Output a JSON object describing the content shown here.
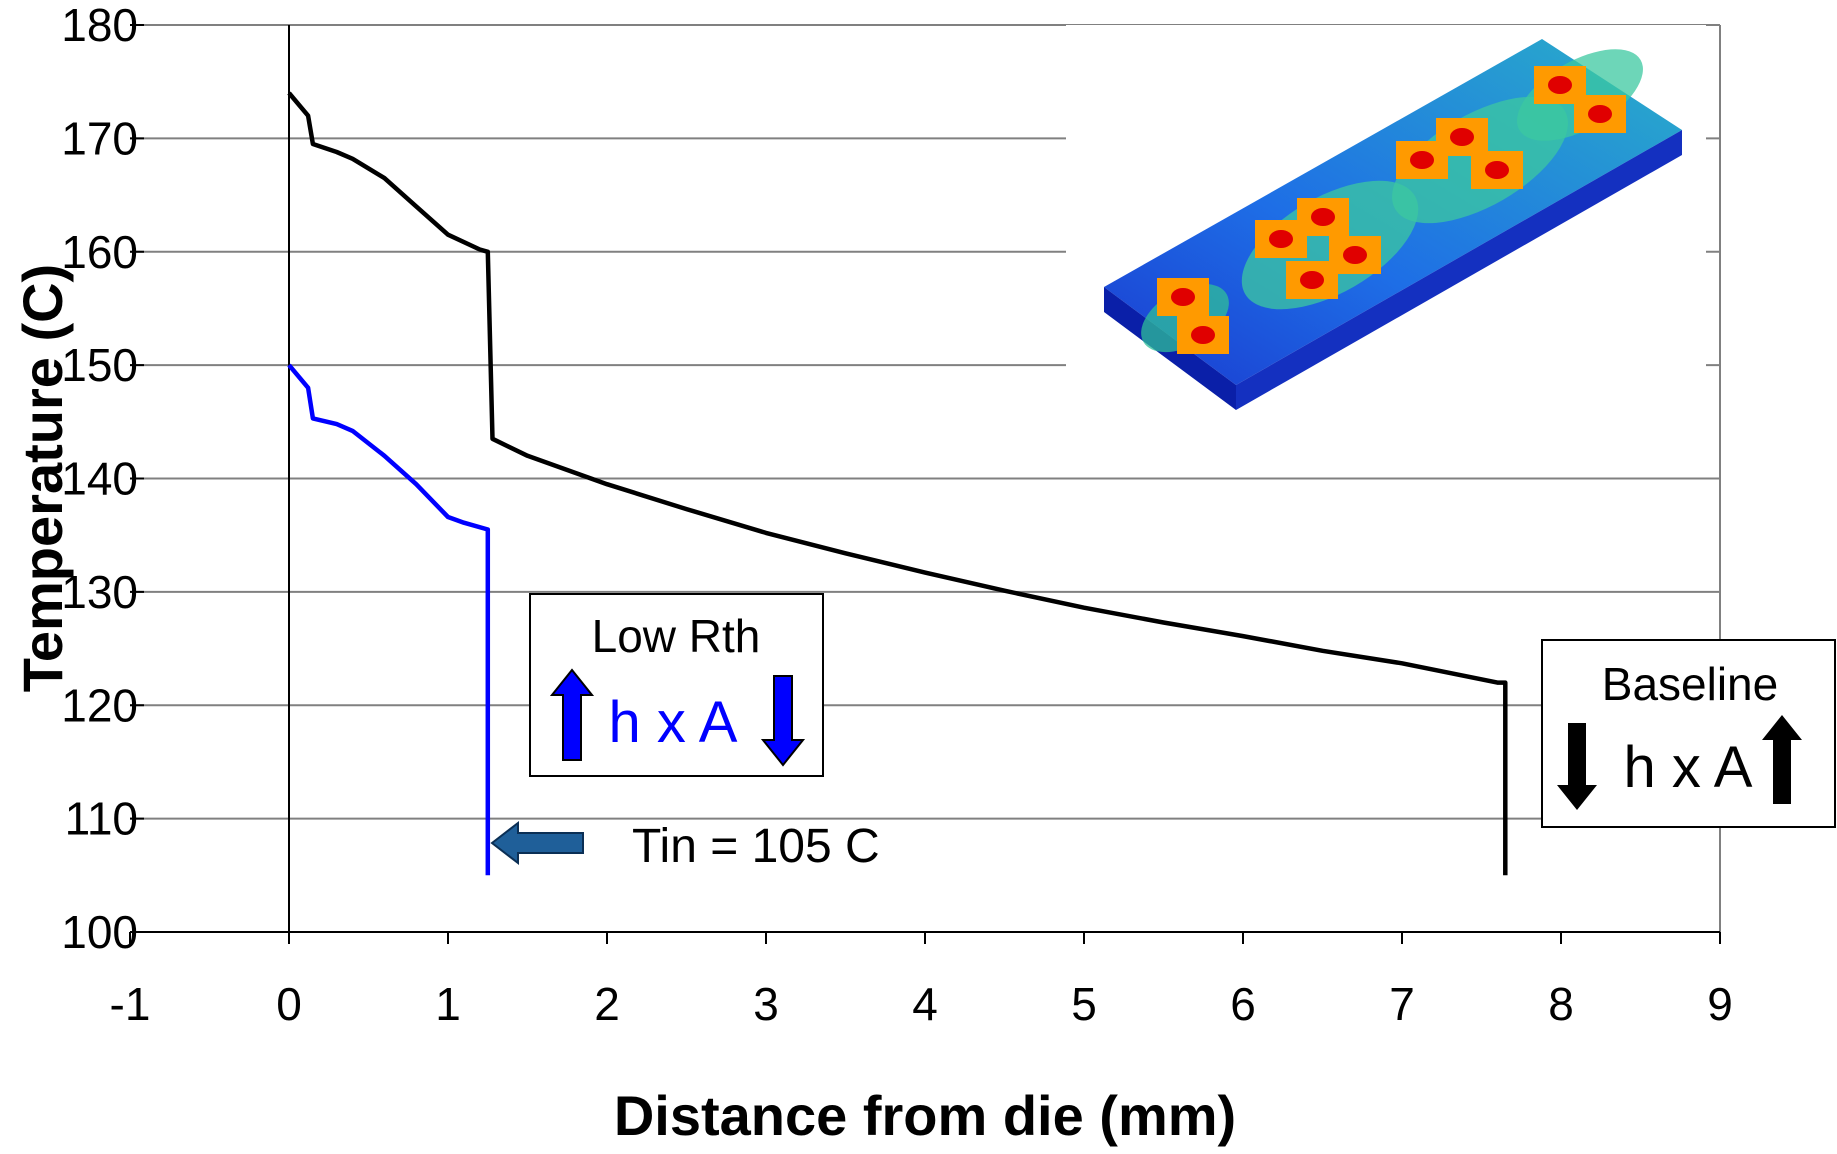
{
  "chart_data": {
    "type": "line",
    "xlabel": "Distance from die (mm)",
    "ylabel": "Temperature (C)",
    "xlim": [
      -1,
      9
    ],
    "ylim": [
      100,
      180
    ],
    "x_ticks": [
      "-1",
      "0",
      "1",
      "2",
      "3",
      "4",
      "5",
      "6",
      "7",
      "8",
      "9"
    ],
    "y_ticks": [
      "100",
      "110",
      "120",
      "130",
      "140",
      "150",
      "160",
      "170",
      "180"
    ],
    "grid": "horizontal",
    "series": [
      {
        "color": "#000000",
        "points": [
          [
            0.0,
            174.0
          ],
          [
            0.12,
            172.0
          ],
          [
            0.15,
            169.5
          ],
          [
            0.3,
            168.8
          ],
          [
            0.4,
            168.2
          ],
          [
            0.6,
            166.5
          ],
          [
            0.8,
            164.0
          ],
          [
            1.0,
            161.5
          ],
          [
            1.2,
            160.2
          ],
          [
            1.25,
            160.0
          ],
          [
            1.28,
            143.5
          ],
          [
            1.5,
            142.0
          ],
          [
            2.0,
            139.5
          ],
          [
            2.5,
            137.3
          ],
          [
            3.0,
            135.2
          ],
          [
            3.5,
            133.4
          ],
          [
            4.0,
            131.7
          ],
          [
            4.5,
            130.1
          ],
          [
            5.0,
            128.6
          ],
          [
            5.5,
            127.3
          ],
          [
            6.0,
            126.1
          ],
          [
            6.5,
            124.8
          ],
          [
            7.0,
            123.7
          ],
          [
            7.6,
            122.0
          ],
          [
            7.65,
            122.0
          ],
          [
            7.65,
            105.0
          ]
        ]
      },
      {
        "color": "#0000ff",
        "points": [
          [
            0.0,
            150.0
          ],
          [
            0.12,
            148.0
          ],
          [
            0.15,
            145.3
          ],
          [
            0.3,
            144.8
          ],
          [
            0.4,
            144.2
          ],
          [
            0.6,
            142.0
          ],
          [
            0.8,
            139.5
          ],
          [
            1.0,
            136.6
          ],
          [
            1.1,
            136.1
          ],
          [
            1.25,
            135.5
          ],
          [
            1.25,
            105.0
          ]
        ]
      }
    ],
    "annotations": {
      "low_rth": {
        "title": "Low Rth",
        "formula": "h x A"
      },
      "baseline": {
        "title": "Baseline",
        "formula": "h x A"
      },
      "tin": "Tin = 105 C"
    },
    "colors": {
      "baseline": "#000000",
      "low_rth": "#0000ff",
      "tin_arrow": "#1f5f99"
    }
  }
}
